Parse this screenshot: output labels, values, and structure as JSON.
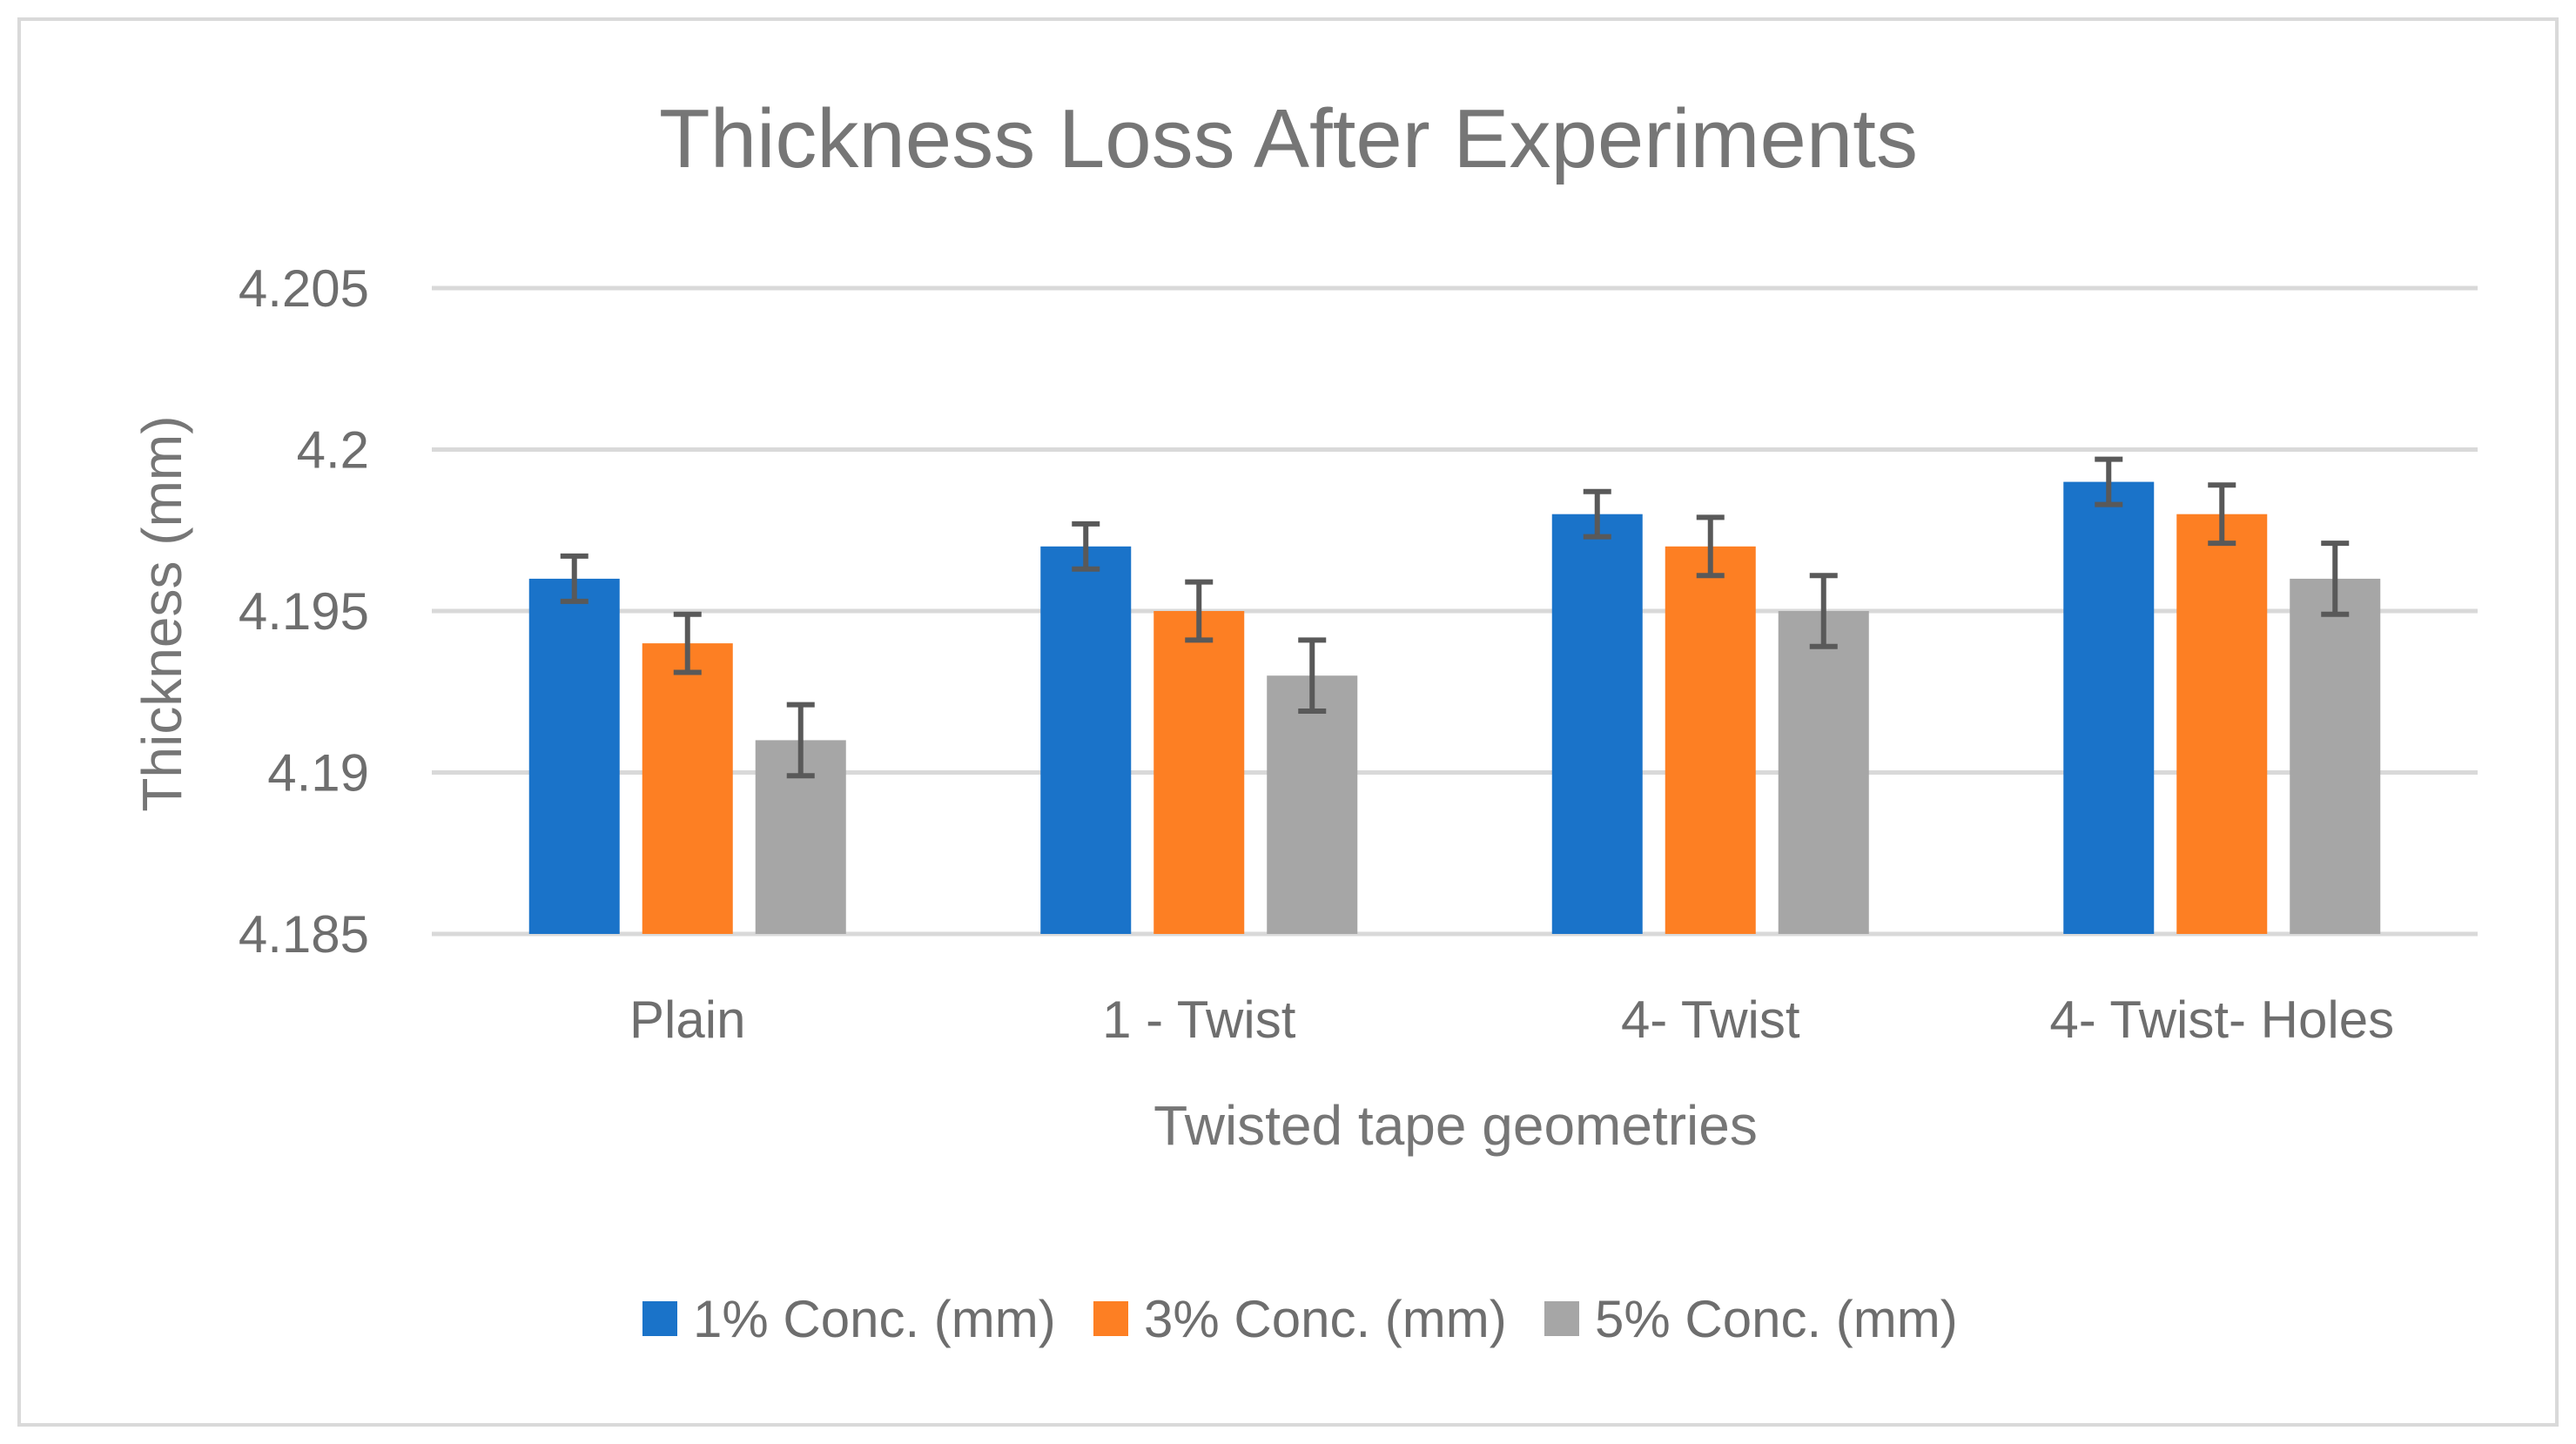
{
  "chart_data": {
    "type": "bar",
    "title": "Thickness Loss After Experiments",
    "xlabel": "Twisted tape geometries",
    "ylabel": "Thickness (mm)",
    "categories": [
      "Plain",
      "1 - Twist",
      "4- Twist",
      "4- Twist- Holes"
    ],
    "ylim": [
      4.185,
      4.205
    ],
    "yticks": [
      "4.185",
      "4.19",
      "4.195",
      "4.2",
      "4.205"
    ],
    "grid": true,
    "legend_position": "bottom",
    "error_bars": true,
    "series": [
      {
        "name": "1% Conc. (mm)",
        "color": "#1a73c9",
        "values": [
          4.196,
          4.197,
          4.198,
          4.199
        ],
        "errors": [
          0.0007,
          0.0007,
          0.0007,
          0.0007
        ]
      },
      {
        "name": "3% Conc. (mm)",
        "color": "#fd7f23",
        "values": [
          4.194,
          4.195,
          4.197,
          4.198
        ],
        "errors": [
          0.0009,
          0.0009,
          0.0009,
          0.0009
        ]
      },
      {
        "name": "5% Conc. (mm)",
        "color": "#a6a6a6",
        "values": [
          4.191,
          4.193,
          4.195,
          4.196
        ],
        "errors": [
          0.0011,
          0.0011,
          0.0011,
          0.0011
        ]
      }
    ]
  }
}
